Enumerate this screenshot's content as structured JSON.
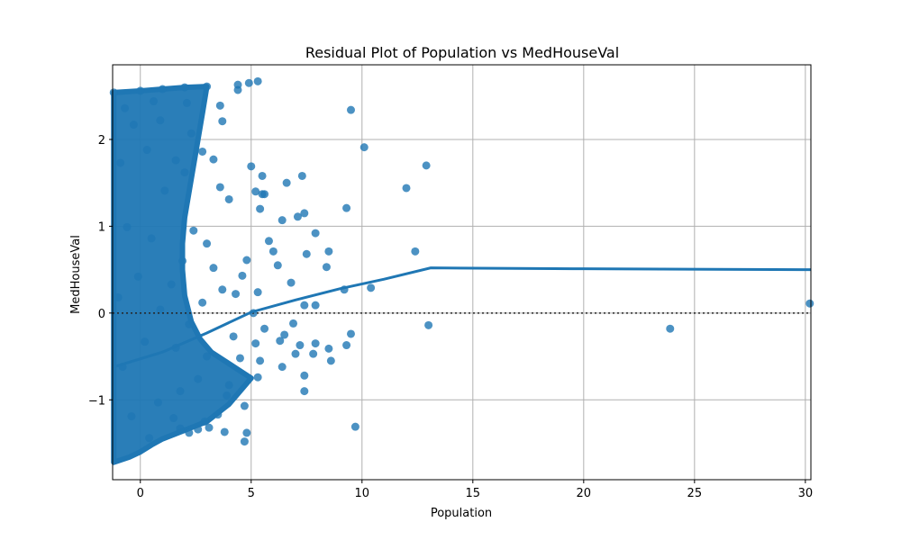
{
  "chart_data": {
    "type": "scatter",
    "title": "Residual Plot of Population vs MedHouseVal",
    "xlabel": "Population",
    "ylabel": "MedHouseVal",
    "xlim": [
      -1.25,
      30.25
    ],
    "ylim": [
      -1.92,
      2.86
    ],
    "xticks": [
      0,
      5,
      10,
      15,
      20,
      25,
      30
    ],
    "yticks": [
      -1,
      0,
      1,
      2
    ],
    "ytick_labels": [
      "−1",
      "0",
      "1",
      "2"
    ],
    "grid": true,
    "reference_line_y": 0,
    "colors": {
      "points": "#1f77b4",
      "fit": "#1f77b4",
      "reference": "#262626"
    },
    "series": [
      {
        "kind": "scatter",
        "points": [
          [
            9.5,
            2.34
          ],
          [
            10.1,
            1.91
          ],
          [
            12.9,
            1.7
          ],
          [
            12.0,
            1.44
          ],
          [
            9.3,
            1.21
          ],
          [
            12.4,
            0.71
          ],
          [
            10.4,
            0.29
          ],
          [
            9.2,
            0.27
          ],
          [
            13.0,
            -0.14
          ],
          [
            9.5,
            -0.24
          ],
          [
            9.3,
            -0.37
          ],
          [
            9.7,
            -1.31
          ],
          [
            23.9,
            -0.18
          ],
          [
            30.2,
            0.11
          ],
          [
            8.6,
            -0.55
          ],
          [
            8.5,
            -0.41
          ],
          [
            7.9,
            -0.35
          ],
          [
            7.9,
            0.92
          ],
          [
            8.4,
            0.53
          ],
          [
            8.5,
            0.71
          ],
          [
            7.3,
            1.58
          ],
          [
            7.4,
            1.15
          ],
          [
            7.1,
            1.11
          ],
          [
            6.6,
            1.5
          ],
          [
            6.4,
            1.07
          ],
          [
            7.5,
            0.68
          ],
          [
            7.4,
            0.09
          ],
          [
            7.9,
            0.09
          ],
          [
            7.2,
            -0.37
          ],
          [
            7.4,
            -0.72
          ],
          [
            7.4,
            -0.9
          ],
          [
            7.0,
            -0.47
          ],
          [
            7.8,
            -0.47
          ],
          [
            6.9,
            -0.12
          ],
          [
            6.5,
            -0.25
          ],
          [
            6.3,
            -0.32
          ],
          [
            6.4,
            -0.62
          ],
          [
            6.8,
            0.35
          ],
          [
            6.2,
            0.55
          ],
          [
            5.8,
            0.83
          ],
          [
            6.0,
            0.71
          ],
          [
            5.5,
            1.58
          ],
          [
            5.0,
            1.69
          ],
          [
            5.2,
            1.4
          ],
          [
            5.5,
            1.37
          ],
          [
            5.6,
            1.37
          ],
          [
            5.4,
            1.2
          ],
          [
            5.3,
            2.67
          ],
          [
            4.9,
            2.65
          ],
          [
            4.4,
            2.63
          ],
          [
            4.4,
            2.57
          ],
          [
            3.6,
            2.39
          ],
          [
            3.7,
            2.21
          ],
          [
            4.8,
            -1.38
          ],
          [
            4.7,
            -1.48
          ],
          [
            4.7,
            -1.07
          ],
          [
            3.8,
            -1.37
          ],
          [
            5.3,
            -0.74
          ],
          [
            5.4,
            -0.55
          ],
          [
            5.2,
            -0.35
          ],
          [
            5.6,
            -0.18
          ],
          [
            5.1,
            0.0
          ],
          [
            5.3,
            0.24
          ],
          [
            4.8,
            0.61
          ],
          [
            4.6,
            0.43
          ],
          [
            4.3,
            0.22
          ],
          [
            4.2,
            -0.27
          ],
          [
            4.5,
            -0.52
          ],
          [
            4.0,
            -0.83
          ],
          [
            3.9,
            -0.95
          ],
          [
            3.5,
            -1.17
          ],
          [
            3.1,
            -1.32
          ],
          [
            2.9,
            -1.25
          ],
          [
            2.6,
            -1.34
          ],
          [
            2.2,
            -1.38
          ],
          [
            1.8,
            -1.33
          ],
          [
            1.5,
            -1.21
          ],
          [
            4.0,
            1.31
          ],
          [
            3.6,
            1.45
          ],
          [
            3.3,
            1.77
          ],
          [
            2.8,
            1.86
          ],
          [
            2.3,
            2.07
          ],
          [
            2.1,
            2.42
          ],
          [
            3.0,
            0.8
          ],
          [
            3.3,
            0.52
          ],
          [
            3.7,
            0.27
          ],
          [
            3.0,
            -0.5
          ],
          [
            2.6,
            -0.76
          ],
          [
            2.8,
            0.12
          ],
          [
            2.4,
            0.95
          ],
          [
            2.0,
            1.62
          ],
          [
            1.6,
            1.76
          ],
          [
            1.8,
            -0.9
          ],
          [
            1.6,
            -0.4
          ],
          [
            2.2,
            -0.13
          ],
          [
            1.4,
            0.33
          ],
          [
            1.9,
            0.6
          ],
          [
            1.1,
            1.41
          ],
          [
            0.9,
            2.22
          ],
          [
            0.6,
            2.44
          ],
          [
            0.8,
            -1.03
          ],
          [
            0.4,
            -1.44
          ],
          [
            0.9,
            0.04
          ],
          [
            0.5,
            0.86
          ],
          [
            0.3,
            1.88
          ],
          [
            -0.3,
            2.17
          ],
          [
            -0.6,
            0.99
          ],
          [
            -0.8,
            -0.62
          ],
          [
            -0.4,
            -1.19
          ],
          [
            -0.9,
            1.73
          ],
          [
            -0.1,
            0.42
          ],
          [
            0.2,
            -0.33
          ],
          [
            -0.7,
            2.36
          ],
          [
            -1.0,
            0.18
          ]
        ]
      },
      {
        "kind": "line",
        "name": "",
        "x": [
          -1.2,
          1.0,
          3.0,
          5.0,
          7.0,
          9.0,
          11.0,
          13.1,
          20.0,
          30.25
        ],
        "y": [
          -0.62,
          -0.45,
          -0.23,
          0.01,
          0.15,
          0.28,
          0.39,
          0.52,
          0.51,
          0.5
        ]
      }
    ],
    "dense_band": {
      "note_free": true,
      "upper": [
        [
          -1.2,
          2.54
        ],
        [
          0.0,
          2.56
        ],
        [
          1.0,
          2.58
        ],
        [
          2.0,
          2.6
        ],
        [
          3.0,
          2.61
        ]
      ],
      "lower": [
        [
          -1.2,
          -1.72
        ],
        [
          -0.5,
          -1.66
        ],
        [
          0.0,
          -1.6
        ],
        [
          0.5,
          -1.52
        ],
        [
          1.0,
          -1.45
        ],
        [
          2.0,
          -1.35
        ],
        [
          3.0,
          -1.25
        ],
        [
          4.0,
          -1.05
        ],
        [
          5.0,
          -0.75
        ]
      ]
    }
  }
}
